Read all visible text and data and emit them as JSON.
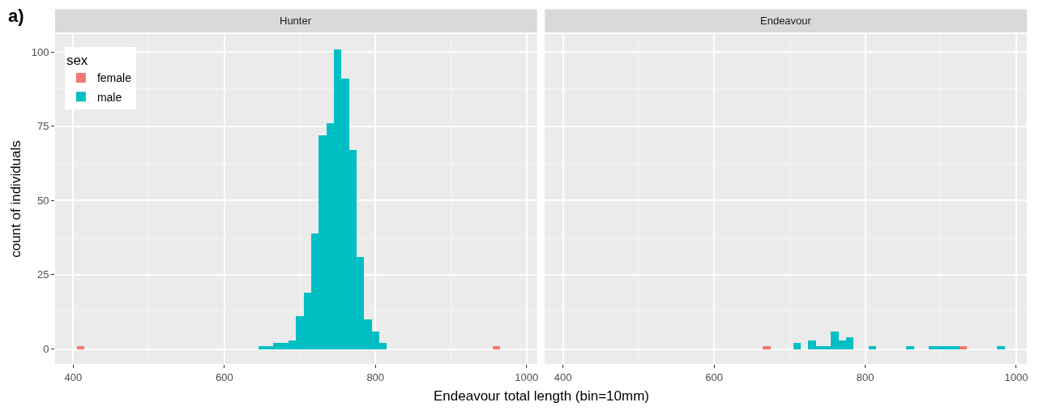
{
  "chart_data": [
    {
      "type": "histogram",
      "title": "Hunter",
      "xlabel": "Endeavour total length (bin=10mm)",
      "ylabel": "count of individuals",
      "legend_title": "sex",
      "legend": "top left",
      "grid": true,
      "annotations": [
        "a)"
      ],
      "bins": [
        405,
        415,
        425,
        435,
        445,
        455,
        465,
        475,
        485,
        495,
        505,
        515,
        525,
        535,
        545,
        555,
        565,
        575,
        585,
        595,
        605,
        615,
        625,
        635,
        645,
        655,
        665,
        675,
        685,
        695,
        705,
        715,
        725,
        735,
        745,
        755,
        765,
        775,
        785,
        795,
        805,
        815,
        825,
        835,
        845,
        855,
        865,
        875,
        885,
        895,
        905,
        915,
        925,
        935,
        945,
        955,
        965,
        975,
        985
      ],
      "series": [
        {
          "name": "female",
          "color": "#f8766d",
          "values": [
            1,
            0,
            0,
            0,
            0,
            0,
            0,
            0,
            0,
            0,
            0,
            0,
            0,
            0,
            0,
            0,
            0,
            0,
            0,
            0,
            0,
            0,
            0,
            0,
            0,
            0,
            0,
            0,
            0,
            0,
            0,
            0,
            0,
            0,
            0,
            0,
            0,
            0,
            0,
            0,
            0,
            0,
            0,
            0,
            0,
            0,
            0,
            0,
            0,
            0,
            0,
            0,
            0,
            0,
            0,
            1,
            0,
            0
          ]
        },
        {
          "name": "male",
          "color": "#00bfc4",
          "values": [
            0,
            0,
            0,
            0,
            0,
            0,
            0,
            0,
            0,
            0,
            0,
            0,
            0,
            0,
            0,
            0,
            0,
            0,
            0,
            0,
            0,
            0,
            0,
            0,
            1,
            1,
            2,
            2,
            3,
            11,
            19,
            39,
            72,
            76,
            101,
            91,
            67,
            31,
            10,
            6,
            2,
            0,
            0,
            0,
            0,
            0,
            0,
            0,
            0,
            0,
            0,
            0,
            0,
            0,
            0,
            0,
            0,
            0
          ]
        }
      ],
      "xlim": [
        376,
        1014
      ],
      "xticks": [
        400,
        600,
        800,
        1000
      ],
      "ylim": [
        -5.05,
        106.05
      ],
      "yticks": [
        0,
        25,
        50,
        75,
        100
      ]
    },
    {
      "type": "histogram",
      "title": "Endeavour",
      "grid": true,
      "tick_labels": "x",
      "bins": [
        405,
        415,
        425,
        435,
        445,
        455,
        465,
        475,
        485,
        495,
        505,
        515,
        525,
        535,
        545,
        555,
        565,
        575,
        585,
        595,
        605,
        615,
        625,
        635,
        645,
        655,
        665,
        675,
        685,
        695,
        705,
        715,
        725,
        735,
        745,
        755,
        765,
        775,
        785,
        795,
        805,
        815,
        825,
        835,
        845,
        855,
        865,
        875,
        885,
        895,
        905,
        915,
        925,
        935,
        945,
        955,
        965,
        975,
        985
      ],
      "series": [
        {
          "color": "#f8766d",
          "values": [
            0,
            0,
            0,
            0,
            0,
            0,
            0,
            0,
            0,
            0,
            0,
            0,
            0,
            0,
            0,
            0,
            0,
            0,
            0,
            0,
            0,
            0,
            0,
            0,
            0,
            0,
            1,
            0,
            0,
            0,
            0,
            0,
            0,
            0,
            0,
            0,
            0,
            0,
            0,
            0,
            0,
            0,
            0,
            0,
            0,
            0,
            0,
            0,
            0,
            0,
            0,
            0,
            1,
            0,
            0,
            0,
            0,
            0
          ]
        },
        {
          "color": "#00bfc4",
          "values": [
            0,
            0,
            0,
            0,
            0,
            0,
            0,
            0,
            0,
            0,
            0,
            0,
            0,
            0,
            0,
            0,
            0,
            0,
            0,
            0,
            0,
            0,
            0,
            0,
            0,
            0,
            0,
            0,
            0,
            0,
            2,
            0,
            3,
            1,
            1,
            6,
            3,
            4,
            0,
            0,
            1,
            0,
            0,
            0,
            0,
            1,
            0,
            0,
            1,
            1,
            1,
            1,
            0,
            0,
            0,
            0,
            0,
            1
          ]
        }
      ],
      "xlim": [
        376,
        1014
      ],
      "xticks": [
        400,
        600,
        800,
        1000
      ],
      "ylim": [
        -5.05,
        106.05
      ],
      "yticks": [
        0,
        25,
        50,
        75,
        100
      ]
    }
  ]
}
